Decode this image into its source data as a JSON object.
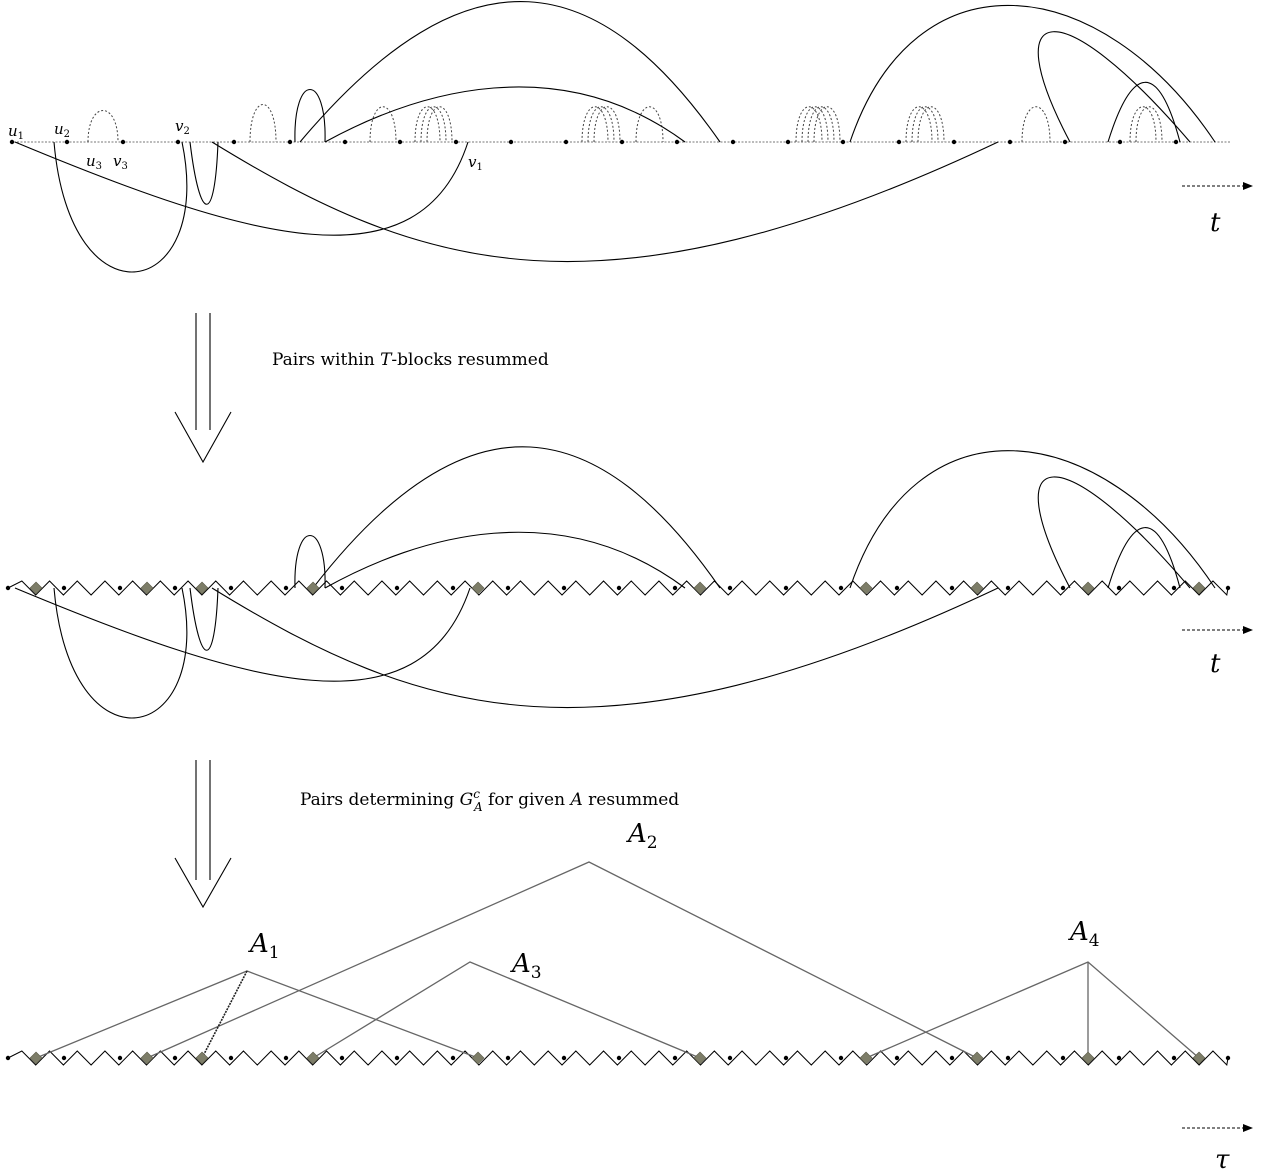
{
  "stage1": {
    "vertex_labels": [
      {
        "base": "u",
        "sub": "1"
      },
      {
        "base": "u",
        "sub": "2"
      },
      {
        "base": "u",
        "sub": "3"
      },
      {
        "base": "v",
        "sub": "3"
      },
      {
        "base": "v",
        "sub": "2"
      },
      {
        "base": "v",
        "sub": "1"
      }
    ],
    "axis_label": "t"
  },
  "step1": {
    "caption_before": "Pairs within ",
    "caption_var": "T",
    "caption_after": "-blocks resummed"
  },
  "stage2": {
    "axis_label": "t"
  },
  "step2": {
    "caption_before": "Pairs determining ",
    "caption_var": "G",
    "caption_sup": "c",
    "caption_sub": "A",
    "caption_mid": " for given ",
    "caption_var2": "A",
    "caption_after": " resummed"
  },
  "stage3": {
    "tree_labels": [
      {
        "base": "A",
        "sub": "1"
      },
      {
        "base": "A",
        "sub": "2"
      },
      {
        "base": "A",
        "sub": "3"
      },
      {
        "base": "A",
        "sub": "4"
      }
    ],
    "axis_label": "τ"
  }
}
